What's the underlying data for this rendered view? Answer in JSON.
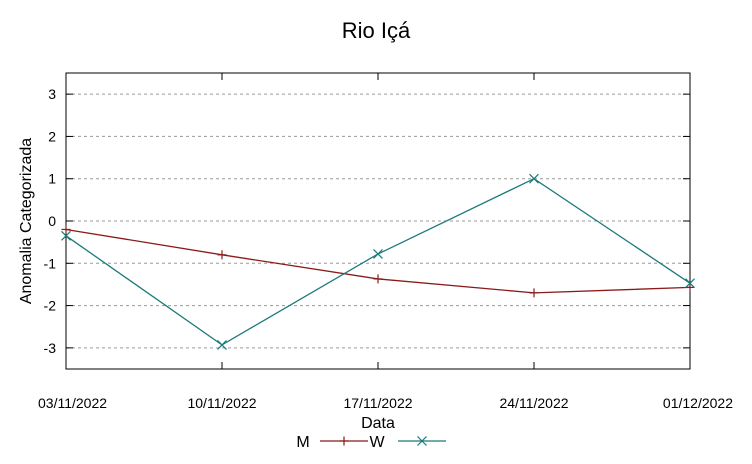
{
  "chart_data": {
    "type": "line",
    "title": "Rio Içá",
    "xlabel": "Data",
    "ylabel": "Anomalia Categorizada",
    "categories": [
      "03/11/2022",
      "10/11/2022",
      "17/11/2022",
      "24/11/2022",
      "01/12/2022"
    ],
    "yticks": [
      3,
      2,
      1,
      0,
      -1,
      -2,
      -3
    ],
    "ylim": [
      -3.5,
      3.5
    ],
    "grid": true,
    "legend_position": "bottom-center",
    "series": [
      {
        "name": "M",
        "values": [
          -0.2,
          -0.8,
          -1.37,
          -1.7,
          -1.57
        ],
        "color": "#8b1a1a",
        "marker": "plus"
      },
      {
        "name": "W",
        "values": [
          -0.35,
          -2.93,
          -0.78,
          1.0,
          -1.47
        ],
        "color": "#1a7a7a",
        "marker": "cross"
      }
    ]
  }
}
